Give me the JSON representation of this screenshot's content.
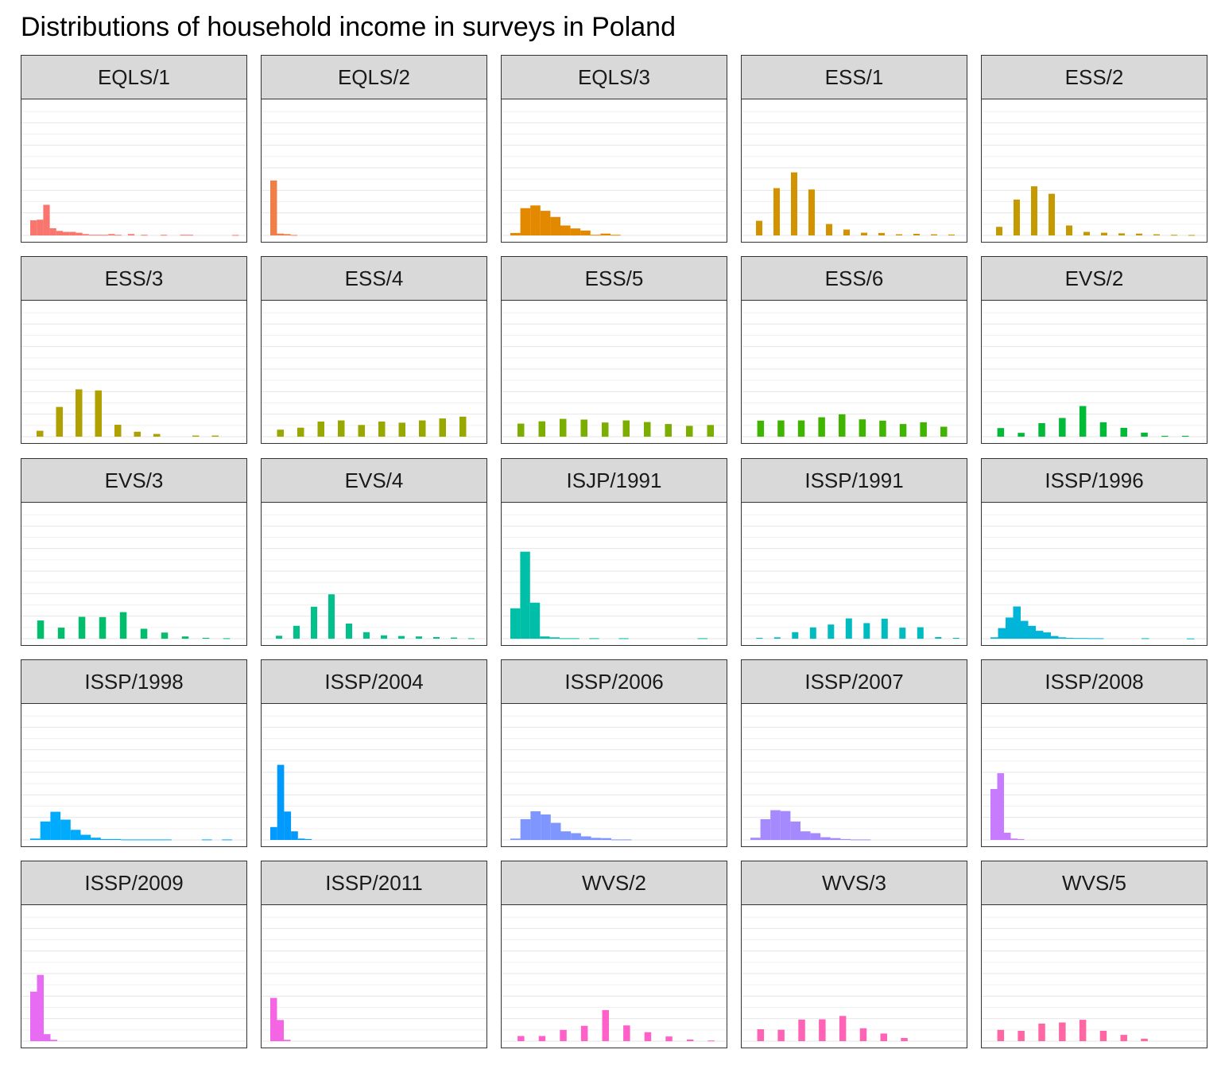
{
  "title": "Distributions of household income in surveys in Poland",
  "chart_data": {
    "type": "bar",
    "layout": "facet-grid 5x5",
    "shared_y_scale": true,
    "grid": "horizontal minor and major lines, light grey",
    "axes_visible": false,
    "ylim": [
      0,
      0.6
    ],
    "panels": [
      {
        "label": "EQLS/1",
        "color": "#F8766D",
        "bins": [
          [
            0,
            0.067
          ],
          [
            1,
            0.07
          ],
          [
            2,
            0.136
          ],
          [
            3,
            0.032
          ],
          [
            4,
            0.02
          ],
          [
            5,
            0.016
          ],
          [
            6,
            0.016
          ],
          [
            7,
            0.012
          ],
          [
            8,
            0.006
          ],
          [
            9,
            0.003
          ],
          [
            10,
            0.003
          ],
          [
            11,
            0.003
          ],
          [
            12,
            0.006
          ],
          [
            13,
            0.003
          ],
          [
            15,
            0.006
          ],
          [
            17,
            0.003
          ],
          [
            20,
            0.003
          ],
          [
            23,
            0.003
          ],
          [
            24,
            0.003
          ],
          [
            31,
            0.002
          ]
        ]
      },
      {
        "label": "EQLS/2",
        "color": "#EF7F49",
        "bins": [
          [
            0,
            0.244
          ],
          [
            1,
            0.008
          ],
          [
            2,
            0.006
          ],
          [
            3,
            0.002
          ]
        ]
      },
      {
        "label": "EQLS/3",
        "color": "#E38900",
        "bins": [
          [
            0,
            0.011
          ],
          [
            1,
            0.121
          ],
          [
            2,
            0.133
          ],
          [
            3,
            0.109
          ],
          [
            4,
            0.082
          ],
          [
            5,
            0.044
          ],
          [
            6,
            0.031
          ],
          [
            7,
            0.022
          ],
          [
            8,
            0.003
          ],
          [
            9,
            0.008
          ],
          [
            10,
            0.003
          ]
        ]
      },
      {
        "label": "ESS/1",
        "color": "#D39200",
        "bins": [
          [
            0,
            0.065
          ],
          [
            1,
            0.21
          ],
          [
            2,
            0.28
          ],
          [
            3,
            0.204
          ],
          [
            4,
            0.051
          ],
          [
            5,
            0.026
          ],
          [
            6,
            0.012
          ],
          [
            7,
            0.011
          ],
          [
            8,
            0.005
          ],
          [
            9,
            0.007
          ],
          [
            10,
            0.005
          ],
          [
            11,
            0.004
          ],
          [
            12,
            0.002
          ]
        ]
      },
      {
        "label": "ESS/2",
        "color": "#C49A00",
        "bins": [
          [
            0,
            0.038
          ],
          [
            1,
            0.159
          ],
          [
            2,
            0.218
          ],
          [
            3,
            0.185
          ],
          [
            4,
            0.044
          ],
          [
            5,
            0.016
          ],
          [
            6,
            0.012
          ],
          [
            7,
            0.009
          ],
          [
            8,
            0.008
          ],
          [
            9,
            0.005
          ],
          [
            10,
            0.003
          ],
          [
            11,
            0.002
          ]
        ]
      },
      {
        "label": "ESS/3",
        "color": "#B0A100",
        "bins": [
          [
            0,
            0.026
          ],
          [
            1,
            0.132
          ],
          [
            2,
            0.21
          ],
          [
            3,
            0.205
          ],
          [
            4,
            0.053
          ],
          [
            5,
            0.022
          ],
          [
            6,
            0.012
          ],
          [
            8,
            0.005
          ],
          [
            9,
            0.005
          ]
        ]
      },
      {
        "label": "ESS/4",
        "color": "#99A800",
        "bins": [
          [
            0,
            0.031
          ],
          [
            1,
            0.04
          ],
          [
            2,
            0.067
          ],
          [
            3,
            0.072
          ],
          [
            4,
            0.052
          ],
          [
            5,
            0.067
          ],
          [
            6,
            0.062
          ],
          [
            7,
            0.072
          ],
          [
            8,
            0.081
          ],
          [
            9,
            0.089
          ]
        ]
      },
      {
        "label": "ESS/5",
        "color": "#7CAE00",
        "bins": [
          [
            0,
            0.058
          ],
          [
            1,
            0.068
          ],
          [
            2,
            0.079
          ],
          [
            3,
            0.076
          ],
          [
            4,
            0.063
          ],
          [
            5,
            0.072
          ],
          [
            6,
            0.065
          ],
          [
            7,
            0.056
          ],
          [
            8,
            0.048
          ],
          [
            9,
            0.052
          ]
        ]
      },
      {
        "label": "ESS/6",
        "color": "#40B500",
        "bins": [
          [
            0,
            0.071
          ],
          [
            1,
            0.072
          ],
          [
            2,
            0.072
          ],
          [
            3,
            0.086
          ],
          [
            4,
            0.099
          ],
          [
            5,
            0.077
          ],
          [
            6,
            0.071
          ],
          [
            7,
            0.056
          ],
          [
            8,
            0.064
          ],
          [
            9,
            0.044
          ]
        ]
      },
      {
        "label": "EVS/2",
        "color": "#00BA38",
        "bins": [
          [
            0,
            0.038
          ],
          [
            1,
            0.017
          ],
          [
            2,
            0.06
          ],
          [
            3,
            0.083
          ],
          [
            4,
            0.136
          ],
          [
            5,
            0.064
          ],
          [
            6,
            0.039
          ],
          [
            7,
            0.018
          ],
          [
            8,
            0.004
          ],
          [
            9,
            0.004
          ]
        ]
      },
      {
        "label": "EVS/3",
        "color": "#00BE6C",
        "bins": [
          [
            0,
            0.081
          ],
          [
            1,
            0.049
          ],
          [
            2,
            0.097
          ],
          [
            3,
            0.096
          ],
          [
            4,
            0.118
          ],
          [
            5,
            0.044
          ],
          [
            6,
            0.027
          ],
          [
            7,
            0.01
          ],
          [
            8,
            0.004
          ],
          [
            9,
            0.002
          ]
        ]
      },
      {
        "label": "EVS/4",
        "color": "#00C08B",
        "bins": [
          [
            0,
            0.013
          ],
          [
            1,
            0.057
          ],
          [
            2,
            0.142
          ],
          [
            3,
            0.197
          ],
          [
            4,
            0.067
          ],
          [
            5,
            0.029
          ],
          [
            6,
            0.015
          ],
          [
            7,
            0.012
          ],
          [
            8,
            0.01
          ],
          [
            9,
            0.007
          ],
          [
            10,
            0.005
          ],
          [
            11,
            0.002
          ]
        ]
      },
      {
        "label": "ISJP/1991",
        "color": "#00BFA8",
        "bins": [
          [
            0,
            0.135
          ],
          [
            1,
            0.386
          ],
          [
            2,
            0.16
          ],
          [
            3,
            0.01
          ],
          [
            4,
            0.006
          ],
          [
            5,
            0.002
          ],
          [
            6,
            0.002
          ],
          [
            8,
            0.002
          ],
          [
            11,
            0.002
          ],
          [
            19,
            0.002
          ]
        ]
      },
      {
        "label": "ISSP/1991",
        "color": "#00BCC1",
        "bins": [
          [
            0,
            0.004
          ],
          [
            1,
            0.006
          ],
          [
            2,
            0.029
          ],
          [
            3,
            0.05
          ],
          [
            4,
            0.063
          ],
          [
            5,
            0.09
          ],
          [
            6,
            0.069
          ],
          [
            7,
            0.089
          ],
          [
            8,
            0.049
          ],
          [
            9,
            0.051
          ],
          [
            10,
            0.007
          ],
          [
            11,
            0.004
          ]
        ]
      },
      {
        "label": "ISSP/1996",
        "color": "#00B5D8",
        "bins": [
          [
            0,
            0.006
          ],
          [
            1,
            0.047
          ],
          [
            2,
            0.094
          ],
          [
            3,
            0.143
          ],
          [
            4,
            0.079
          ],
          [
            5,
            0.057
          ],
          [
            6,
            0.035
          ],
          [
            7,
            0.028
          ],
          [
            8,
            0.012
          ],
          [
            9,
            0.006
          ],
          [
            10,
            0.004
          ],
          [
            11,
            0.003
          ],
          [
            12,
            0.003
          ],
          [
            13,
            0.002
          ],
          [
            14,
            0.002
          ],
          [
            20,
            0.002
          ],
          [
            26,
            0.001
          ]
        ]
      },
      {
        "label": "ISSP/1998",
        "color": "#00ABFD",
        "bins": [
          [
            0,
            0.006
          ],
          [
            1,
            0.082
          ],
          [
            2,
            0.125
          ],
          [
            3,
            0.09
          ],
          [
            4,
            0.045
          ],
          [
            5,
            0.023
          ],
          [
            6,
            0.01
          ],
          [
            7,
            0.004
          ],
          [
            8,
            0.004
          ],
          [
            9,
            0.002
          ],
          [
            10,
            0.002
          ],
          [
            11,
            0.002
          ],
          [
            12,
            0.002
          ],
          [
            13,
            0.002
          ],
          [
            17,
            0.002
          ],
          [
            19,
            0.002
          ]
        ]
      },
      {
        "label": "ISSP/2004",
        "color": "#009AFF",
        "bins": [
          [
            0,
            0.057
          ],
          [
            1,
            0.333
          ],
          [
            2,
            0.126
          ],
          [
            3,
            0.038
          ],
          [
            4,
            0.006
          ],
          [
            5,
            0.004
          ]
        ]
      },
      {
        "label": "ISSP/2006",
        "color": "#7F96FF",
        "bins": [
          [
            0,
            0.006
          ],
          [
            1,
            0.092
          ],
          [
            2,
            0.127
          ],
          [
            3,
            0.113
          ],
          [
            4,
            0.076
          ],
          [
            5,
            0.038
          ],
          [
            6,
            0.03
          ],
          [
            7,
            0.016
          ],
          [
            8,
            0.009
          ],
          [
            9,
            0.008
          ],
          [
            10,
            0.002
          ],
          [
            11,
            0.002
          ]
        ]
      },
      {
        "label": "ISSP/2007",
        "color": "#A58AFF",
        "bins": [
          [
            0,
            0.01
          ],
          [
            1,
            0.092
          ],
          [
            2,
            0.132
          ],
          [
            3,
            0.128
          ],
          [
            4,
            0.082
          ],
          [
            5,
            0.038
          ],
          [
            6,
            0.03
          ],
          [
            7,
            0.012
          ],
          [
            8,
            0.008
          ],
          [
            9,
            0.004
          ],
          [
            10,
            0.002
          ],
          [
            11,
            0.002
          ]
        ]
      },
      {
        "label": "ISSP/2008",
        "color": "#C77CFF",
        "bins": [
          [
            0,
            0.226
          ],
          [
            1,
            0.296
          ],
          [
            2,
            0.032
          ],
          [
            3,
            0.006
          ],
          [
            4,
            0.004
          ]
        ]
      },
      {
        "label": "ISSP/2009",
        "color": "#E76BF3",
        "bins": [
          [
            0,
            0.22
          ],
          [
            1,
            0.294
          ],
          [
            2,
            0.031
          ],
          [
            3,
            0.006
          ]
        ]
      },
      {
        "label": "ISSP/2011",
        "color": "#F564E3",
        "bins": [
          [
            0,
            0.192
          ],
          [
            1,
            0.094
          ],
          [
            2,
            0.006
          ]
        ]
      },
      {
        "label": "WVS/2",
        "color": "#FF61C9",
        "bins": [
          [
            0,
            0.023
          ],
          [
            1,
            0.023
          ],
          [
            2,
            0.05
          ],
          [
            3,
            0.068
          ],
          [
            4,
            0.138
          ],
          [
            5,
            0.07
          ],
          [
            6,
            0.04
          ],
          [
            7,
            0.021
          ],
          [
            8,
            0.007
          ],
          [
            9,
            0.003
          ]
        ]
      },
      {
        "label": "WVS/3",
        "color": "#FF63B6",
        "bins": [
          [
            0,
            0.053
          ],
          [
            1,
            0.051
          ],
          [
            2,
            0.096
          ],
          [
            3,
            0.097
          ],
          [
            4,
            0.112
          ],
          [
            5,
            0.057
          ],
          [
            6,
            0.034
          ],
          [
            7,
            0.014
          ]
        ]
      },
      {
        "label": "WVS/5",
        "color": "#FF67A4",
        "bins": [
          [
            0,
            0.05
          ],
          [
            1,
            0.046
          ],
          [
            2,
            0.078
          ],
          [
            3,
            0.083
          ],
          [
            4,
            0.095
          ],
          [
            5,
            0.046
          ],
          [
            6,
            0.028
          ],
          [
            7,
            0.011
          ]
        ]
      }
    ]
  }
}
